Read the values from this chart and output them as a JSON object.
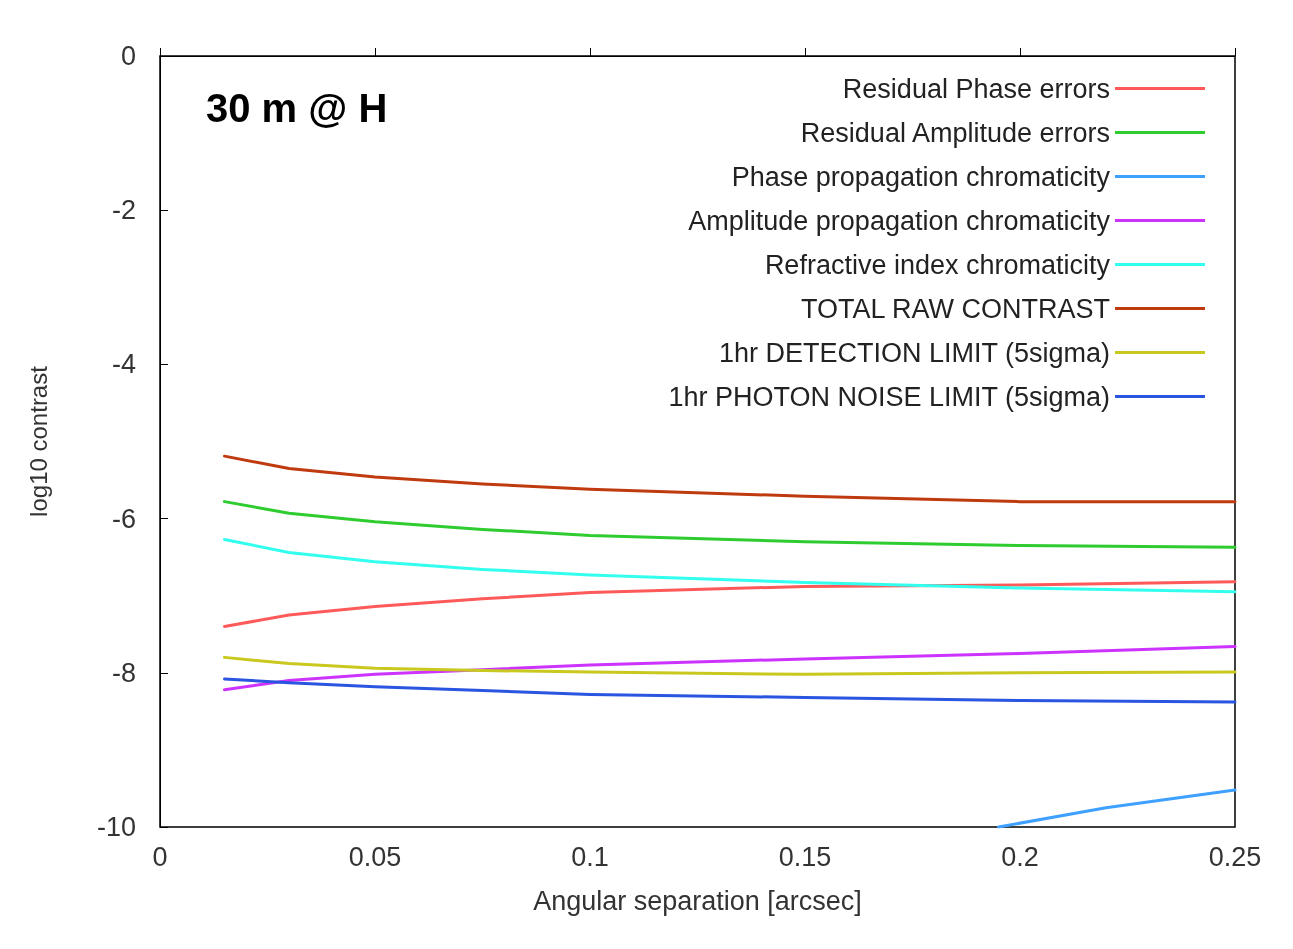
{
  "chart_data": {
    "type": "line",
    "xlabel": "Angular separation [arcsec]",
    "ylabel": "log10 contrast",
    "annotations": [
      "30 m @ H"
    ],
    "xlim": [
      0,
      0.25
    ],
    "xticks": [
      0,
      0.05,
      0.1,
      0.15,
      0.2,
      0.25
    ],
    "ylim": [
      -10,
      0
    ],
    "yticks": [
      -10,
      -8,
      -6,
      -4,
      -2,
      0
    ],
    "grid": false,
    "legend": "top right",
    "marker": "none",
    "line_style": "solid",
    "series": [
      {
        "name": "Residual Phase errors",
        "color": "#ff5a5a",
        "x": [
          0.015,
          0.03,
          0.05,
          0.075,
          0.1,
          0.15,
          0.2,
          0.25
        ],
        "values": [
          -7.4,
          -7.25,
          -7.14,
          -7.04,
          -6.96,
          -6.88,
          -6.86,
          -6.82
        ]
      },
      {
        "name": "Residual Amplitude errors",
        "color": "#2ecc2e",
        "x": [
          0.015,
          0.03,
          0.05,
          0.075,
          0.1,
          0.15,
          0.2,
          0.25
        ],
        "values": [
          -5.78,
          -5.93,
          -6.04,
          -6.14,
          -6.22,
          -6.3,
          -6.35,
          -6.37
        ]
      },
      {
        "name": "Phase propagation chromaticity",
        "color": "#3ea0ff",
        "x": [
          0.195,
          0.22,
          0.25
        ],
        "values": [
          -10,
          -9.75,
          -9.52
        ]
      },
      {
        "name": "Amplitude propagation chromaticity",
        "color": "#cc33ff",
        "x": [
          0.015,
          0.03,
          0.05,
          0.075,
          0.1,
          0.15,
          0.2,
          0.25
        ],
        "values": [
          -8.22,
          -8.1,
          -8.02,
          -7.96,
          -7.9,
          -7.82,
          -7.75,
          -7.66
        ]
      },
      {
        "name": "Refractive index chromaticity",
        "color": "#33ffee",
        "x": [
          0.015,
          0.03,
          0.05,
          0.075,
          0.1,
          0.15,
          0.2,
          0.25
        ],
        "values": [
          -6.27,
          -6.44,
          -6.56,
          -6.66,
          -6.73,
          -6.83,
          -6.9,
          -6.95
        ]
      },
      {
        "name": "TOTAL RAW CONTRAST",
        "color": "#c03a10",
        "x": [
          0.015,
          0.03,
          0.05,
          0.075,
          0.1,
          0.15,
          0.2,
          0.25
        ],
        "values": [
          -5.19,
          -5.35,
          -5.46,
          -5.55,
          -5.62,
          -5.71,
          -5.78,
          -5.78
        ]
      },
      {
        "name": "1hr DETECTION LIMIT (5sigma)",
        "color": "#c8c81e",
        "x": [
          0.015,
          0.03,
          0.05,
          0.075,
          0.1,
          0.15,
          0.2,
          0.25
        ],
        "values": [
          -7.8,
          -7.88,
          -7.94,
          -7.97,
          -7.99,
          -8.02,
          -8,
          -7.99
        ]
      },
      {
        "name": "1hr PHOTON NOISE LIMIT (5sigma)",
        "color": "#2a55e0",
        "x": [
          0.015,
          0.03,
          0.05,
          0.075,
          0.1,
          0.15,
          0.2,
          0.25
        ],
        "values": [
          -8.08,
          -8.13,
          -8.18,
          -8.23,
          -8.28,
          -8.32,
          -8.36,
          -8.38
        ]
      }
    ]
  }
}
